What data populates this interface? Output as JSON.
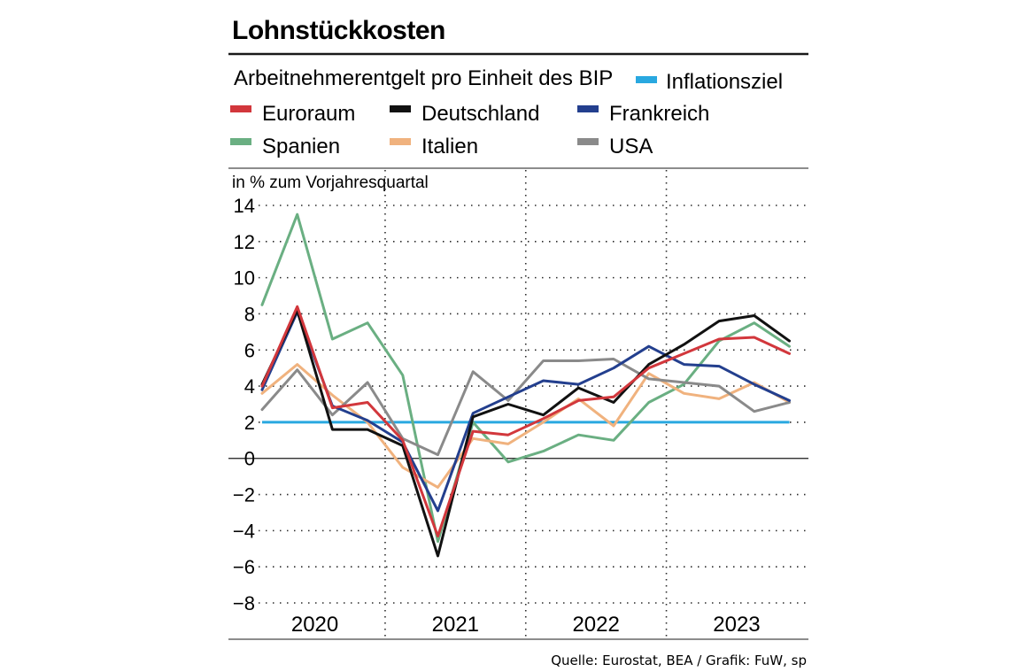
{
  "chart_data": {
    "type": "line",
    "title": "Lohnstückkosten",
    "subtitle": "Arbeitnehmerentgelt pro Einheit des BIP",
    "ylabel": "in % zum Vorjahresquartal",
    "ylim": [
      -8,
      14
    ],
    "yticks": [
      "14",
      "12",
      "10",
      "8",
      "6",
      "4",
      "2",
      "0",
      "−2",
      "−4",
      "−6",
      "−8"
    ],
    "ytick_values": [
      14,
      12,
      10,
      8,
      6,
      4,
      2,
      0,
      -2,
      -4,
      -6,
      -8
    ],
    "years": [
      "2020",
      "2021",
      "2022",
      "2023"
    ],
    "quarters": 16,
    "reference_line": {
      "name": "Inflationsziel",
      "value": 2,
      "color": "#29a8e0"
    },
    "series": [
      {
        "name": "Spanien",
        "color": "#6aaf82",
        "values": [
          8.5,
          13.5,
          6.6,
          7.5,
          4.6,
          -4.6,
          2.0,
          -0.2,
          0.4,
          1.3,
          1.0,
          3.1,
          4.1,
          6.5,
          7.5,
          6.2
        ]
      },
      {
        "name": "Italien",
        "color": "#f0b27e",
        "values": [
          3.6,
          5.2,
          3.5,
          2.0,
          -0.5,
          -1.6,
          1.1,
          0.8,
          2.0,
          3.3,
          1.8,
          4.7,
          3.6,
          3.3,
          4.2,
          3.1
        ]
      },
      {
        "name": "USA",
        "color": "#8a8a8a",
        "values": [
          2.7,
          4.9,
          2.4,
          4.2,
          1.1,
          0.2,
          4.8,
          3.2,
          5.4,
          5.4,
          5.5,
          4.4,
          4.2,
          4.0,
          2.6,
          3.1
        ]
      },
      {
        "name": "Frankreich",
        "color": "#233f8e",
        "values": [
          3.8,
          8.1,
          2.9,
          2.1,
          0.9,
          -2.9,
          2.5,
          3.4,
          4.3,
          4.1,
          5.0,
          6.2,
          5.2,
          5.1,
          4.1,
          3.2
        ]
      },
      {
        "name": "Deutschland",
        "color": "#111111",
        "values": [
          4.1,
          8.2,
          1.6,
          1.6,
          0.7,
          -5.4,
          2.3,
          3.0,
          2.4,
          3.9,
          3.1,
          5.2,
          6.3,
          7.6,
          7.9,
          6.5
        ]
      },
      {
        "name": "Euroraum",
        "color": "#d2373c",
        "values": [
          4.0,
          8.4,
          2.8,
          3.1,
          1.0,
          -4.3,
          1.5,
          1.3,
          2.2,
          3.2,
          3.4,
          5.0,
          5.8,
          6.6,
          6.7,
          5.8
        ]
      }
    ],
    "legend": [
      {
        "name": "Euroraum",
        "color": "#d2373c"
      },
      {
        "name": "Deutschland",
        "color": "#111111"
      },
      {
        "name": "Frankreich",
        "color": "#233f8e"
      },
      {
        "name": "Spanien",
        "color": "#6aaf82"
      },
      {
        "name": "Italien",
        "color": "#f0b27e"
      },
      {
        "name": "USA",
        "color": "#8a8a8a"
      }
    ],
    "source": "Quelle: Eurostat, BEA / Grafik: FuW, sp"
  }
}
